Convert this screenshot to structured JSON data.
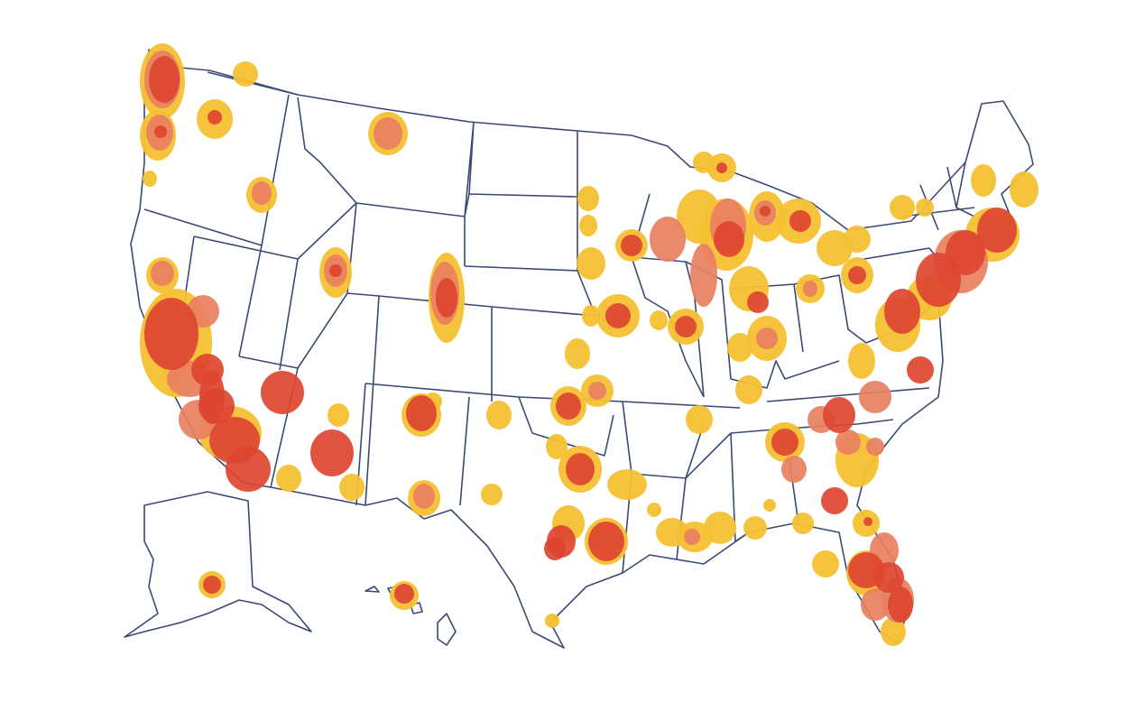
{
  "map": {
    "colors": [
      "#f5c033",
      "#e8805f",
      "#dd4530"
    ]
  }
}
